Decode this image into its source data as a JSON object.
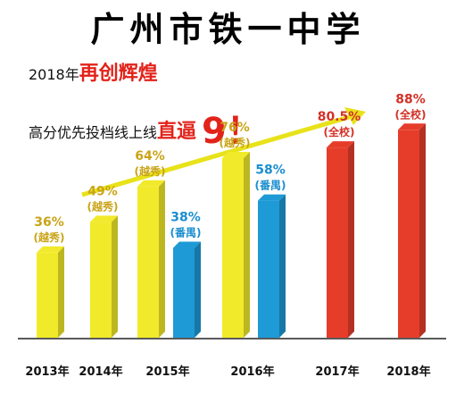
{
  "header": {
    "title": "广州市铁一中学",
    "line1_prefix": "2018年",
    "line1_highlight": "再创辉煌",
    "line2_prefix": "高分优先投档线上线",
    "line2_highlight": "直逼",
    "line2_number": "9！"
  },
  "colors": {
    "yellow": "#f1ea2a",
    "blue": "#1e9ad6",
    "red": "#e63d2b",
    "label_yellow": "#c9a417",
    "label_blue": "#1b8fcf",
    "label_red": "#d23127",
    "arrow": "#e8e21a"
  },
  "chart_data": {
    "type": "bar",
    "categories": [
      "2013年",
      "2014年",
      "2015年",
      "2016年",
      "2017年",
      "2018年"
    ],
    "bars": [
      {
        "category": "2013年",
        "value": 36,
        "label": "36%",
        "sublabel": "(越秀)",
        "color": "yellow"
      },
      {
        "category": "2014年",
        "value": 49,
        "label": "49%",
        "sublabel": "(越秀)",
        "color": "yellow"
      },
      {
        "category": "2015年",
        "value": 64,
        "label": "64%",
        "sublabel": "(越秀)",
        "color": "yellow"
      },
      {
        "category": "2015年",
        "value": 38,
        "label": "38%",
        "sublabel": "(番禺)",
        "color": "blue"
      },
      {
        "category": "2016年",
        "value": 76,
        "label": "76%",
        "sublabel": "(越秀)",
        "color": "yellow"
      },
      {
        "category": "2016年",
        "value": 58,
        "label": "58%",
        "sublabel": "(番禺)",
        "color": "blue"
      },
      {
        "category": "2017年",
        "value": 80.5,
        "label": "80.5%",
        "sublabel": "(全校)",
        "color": "red"
      },
      {
        "category": "2018年",
        "value": 88,
        "label": "88%",
        "sublabel": "(全校)",
        "color": "red"
      }
    ],
    "title": "广州市铁一中学",
    "xlabel": "",
    "ylabel": "",
    "grid": false,
    "legend": "none"
  }
}
